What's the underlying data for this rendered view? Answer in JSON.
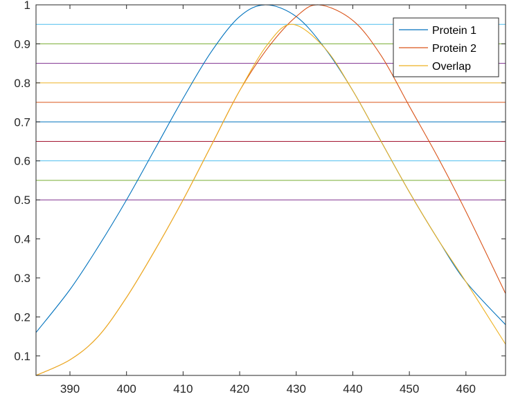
{
  "chart_data": {
    "type": "line",
    "title": "",
    "xlabel": "",
    "ylabel": "",
    "xlim": [
      384,
      467
    ],
    "ylim": [
      0.05,
      1
    ],
    "x_ticks": [
      390,
      400,
      410,
      420,
      430,
      440,
      450,
      460
    ],
    "y_ticks": [
      0.1,
      0.2,
      0.3,
      0.4,
      0.5,
      0.6,
      0.7,
      0.8,
      0.9,
      1
    ],
    "x_tick_labels": [
      "390",
      "400",
      "410",
      "420",
      "430",
      "440",
      "450",
      "460"
    ],
    "y_tick_labels": [
      "0.1",
      "0.2",
      "0.3",
      "0.4",
      "0.5",
      "0.6",
      "0.7",
      "0.8",
      "0.9",
      "1"
    ],
    "grid": false,
    "legend_position": "top-right",
    "series": [
      {
        "name": "Protein 1",
        "color": "#0072BD",
        "x": [
          384,
          390,
          395,
          400,
          405,
          410,
          415,
          420,
          424.6,
          430,
          435,
          440,
          445,
          450,
          455,
          460,
          467
        ],
        "y": [
          0.16,
          0.27,
          0.38,
          0.5,
          0.63,
          0.76,
          0.88,
          0.97,
          1.0,
          0.97,
          0.89,
          0.78,
          0.65,
          0.52,
          0.4,
          0.29,
          0.18
        ]
      },
      {
        "name": "Protein 2",
        "color": "#D95319",
        "x": [
          384,
          390,
          395,
          400,
          405,
          410,
          415,
          420,
          425,
          430,
          434,
          440,
          445,
          450,
          455,
          460,
          467
        ],
        "y": [
          0.05,
          0.09,
          0.15,
          0.25,
          0.37,
          0.5,
          0.64,
          0.78,
          0.89,
          0.97,
          1.0,
          0.96,
          0.87,
          0.74,
          0.61,
          0.47,
          0.26
        ]
      },
      {
        "name": "Overlap",
        "color": "#EDB120",
        "x": [
          384,
          390,
          395,
          400,
          405,
          410,
          415,
          420,
          425,
          429.3,
          435,
          440,
          445,
          450,
          455,
          460,
          467
        ],
        "y": [
          0.05,
          0.09,
          0.15,
          0.25,
          0.37,
          0.5,
          0.64,
          0.78,
          0.9,
          0.95,
          0.89,
          0.78,
          0.65,
          0.52,
          0.4,
          0.29,
          0.13
        ]
      }
    ],
    "reference_lines": [
      {
        "y": 0.95,
        "color": "#4DBEEE"
      },
      {
        "y": 0.9,
        "color": "#77AC30"
      },
      {
        "y": 0.85,
        "color": "#7E2F8E"
      },
      {
        "y": 0.8,
        "color": "#EDB120"
      },
      {
        "y": 0.75,
        "color": "#D95319"
      },
      {
        "y": 0.7,
        "color": "#0072BD"
      },
      {
        "y": 0.65,
        "color": "#A2142F"
      },
      {
        "y": 0.6,
        "color": "#4DBEEE"
      },
      {
        "y": 0.55,
        "color": "#77AC30"
      },
      {
        "y": 0.5,
        "color": "#7E2F8E"
      }
    ]
  }
}
